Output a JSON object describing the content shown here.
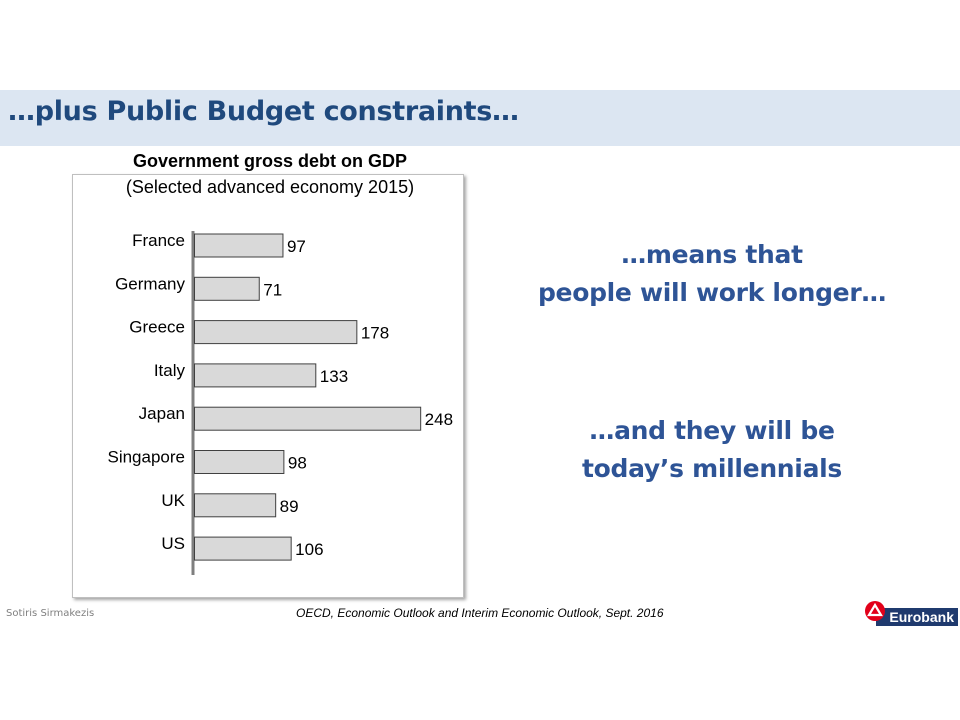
{
  "slide": {
    "title": "…plus Public Budget constraints…",
    "message1": [
      "…means that",
      "people will work longer…"
    ],
    "message2": [
      "…and they will be",
      "today’s millennials"
    ],
    "author": "Sotiris Sirmakezis",
    "source": "OECD, Economic Outlook and Interim Economic Outlook, Sept. 2016",
    "logo": {
      "text": "Eurobank",
      "mark_icon": "eurobank-logo-icon",
      "mark_color": "#e2001a",
      "band_color": "#1f3a6e"
    }
  },
  "chart_data": {
    "type": "bar",
    "orientation": "horizontal",
    "title": "Government gross debt on GDP",
    "subtitle": "(Selected advanced economy 2015)",
    "categories": [
      "France",
      "Germany",
      "Greece",
      "Italy",
      "Japan",
      "Singapore",
      "UK",
      "US"
    ],
    "values": [
      97,
      71,
      178,
      133,
      248,
      98,
      89,
      106
    ],
    "xlim": [
      0,
      250
    ],
    "grid": false,
    "data_labels": true,
    "bar_color": "#d9d9d9",
    "bar_border": "#404040",
    "axis_color": "#7f7f7f"
  }
}
